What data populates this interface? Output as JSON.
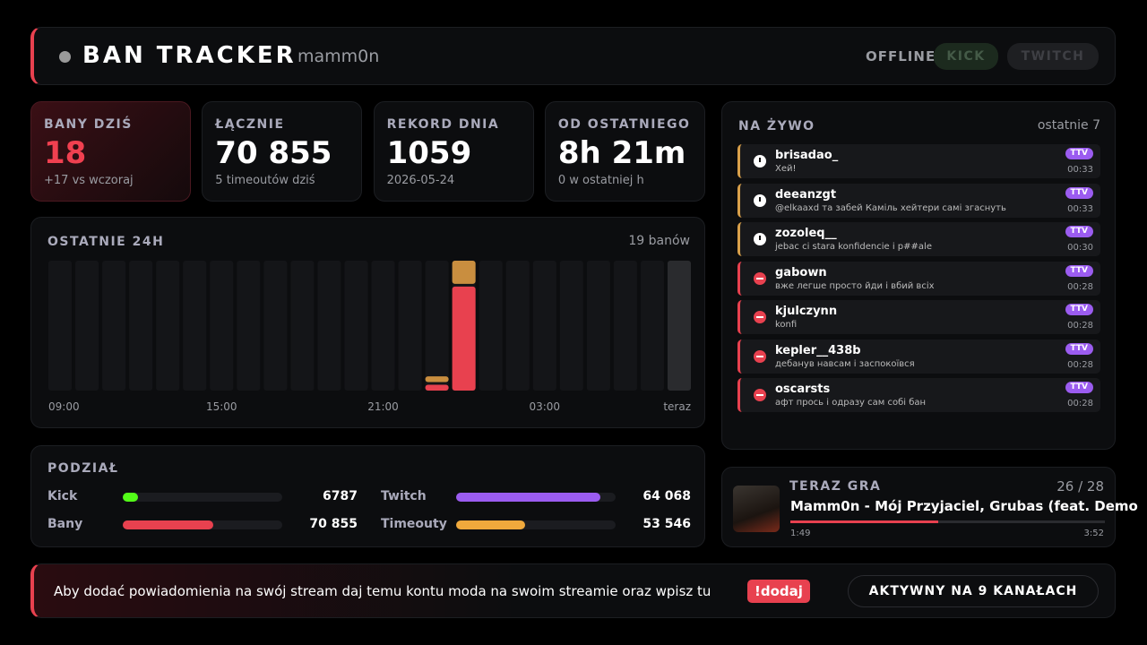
{
  "header": {
    "title": "BAN TRACKER",
    "user": "mamm0n",
    "status": "OFFLINE",
    "platforms": [
      "KICK",
      "TWITCH"
    ]
  },
  "stats": [
    {
      "label": "BANY DZIŚ",
      "value": "18",
      "note": "+17 vs wczoraj"
    },
    {
      "label": "ŁĄCZNIE",
      "value": "70 855",
      "note": "5 timeoutów dziś"
    },
    {
      "label": "REKORD DNIA",
      "value": "1059",
      "note": "2026-05-24"
    },
    {
      "label": "OD OSTATNIEGO",
      "value": "8h 21m",
      "note": "0 w ostatniej h"
    }
  ],
  "chart_data": {
    "type": "stacked-bar",
    "title": "OSTATNIE 24H",
    "subtitle": "19 banów",
    "categories": [
      "09:00",
      null,
      null,
      null,
      null,
      null,
      "15:00",
      null,
      null,
      null,
      null,
      null,
      "21:00",
      null,
      null,
      null,
      null,
      null,
      "03:00",
      null,
      null,
      null,
      null,
      "teraz"
    ],
    "series": [
      {
        "color": "#e8414f",
        "values": [
          0,
          0,
          0,
          0,
          0,
          0,
          0,
          0,
          0,
          0,
          0,
          0,
          0,
          0,
          1,
          18,
          0,
          0,
          0,
          0,
          0,
          0,
          0,
          0
        ]
      },
      {
        "color": "#c98e3f",
        "values": [
          0,
          0,
          0,
          0,
          0,
          0,
          0,
          0,
          0,
          0,
          0,
          0,
          0,
          0,
          1,
          4,
          0,
          0,
          0,
          0,
          0,
          0,
          0,
          0
        ]
      }
    ]
  },
  "breakdown": {
    "title": "PODZIAŁ",
    "rows": [
      [
        {
          "label": "Kick",
          "value": 6787,
          "color": "#53fc18"
        },
        {
          "label": "Twitch",
          "value": 64068,
          "value_label": "64 068",
          "color": "#9b5cf0"
        }
      ],
      [
        {
          "label": "Bany",
          "value": 70855,
          "value_label": "70 855",
          "color": "#e8414f"
        },
        {
          "label": "Timeouty",
          "value": 53546,
          "value_label": "53 546",
          "color": "#f0a93c"
        }
      ]
    ]
  },
  "live": {
    "title": "NA ŻYWO",
    "subtitle": "ostatnie 7",
    "items": [
      {
        "kind": "timeout",
        "user": "brisadao_",
        "message": "Хей!",
        "badge": "TTV",
        "time": "00:33"
      },
      {
        "kind": "timeout",
        "user": "deeanzgt",
        "message": "@elkaaxd та забей Каміль хейтери самі згаснуть",
        "badge": "TTV",
        "time": "00:33"
      },
      {
        "kind": "timeout",
        "user": "zozoleq__",
        "message": "jebac ci stara konfidencie i p##ale",
        "badge": "TTV",
        "time": "00:30"
      },
      {
        "kind": "ban",
        "user": "gabown",
        "message": "вже легше просто йди і вбий всіх",
        "badge": "TTV",
        "time": "00:28"
      },
      {
        "kind": "ban",
        "user": "kjulczynn",
        "message": "konfi",
        "badge": "TTV",
        "time": "00:28"
      },
      {
        "kind": "ban",
        "user": "kepler__438b",
        "message": "дебанув навсам і заспокоївся",
        "badge": "TTV",
        "time": "00:28"
      },
      {
        "kind": "ban",
        "user": "oscarsts",
        "message": "афт прось і одразу сам собі бан",
        "badge": "TTV",
        "time": "00:28"
      }
    ]
  },
  "now_playing": {
    "title": "TERAZ GRA",
    "position": "26 / 28",
    "track": "Mamm0n - Mój Przyjaciel, Grubas (feat. Demo",
    "elapsed": "1:49",
    "duration": "3:52"
  },
  "footer": {
    "text": "Aby dodać powiadomienia na swój stream daj temu kontu moda na swoim streamie oraz wpisz tu",
    "command": "!dodaj",
    "status": "AKTYWNY NA 9 KANAŁACH"
  }
}
